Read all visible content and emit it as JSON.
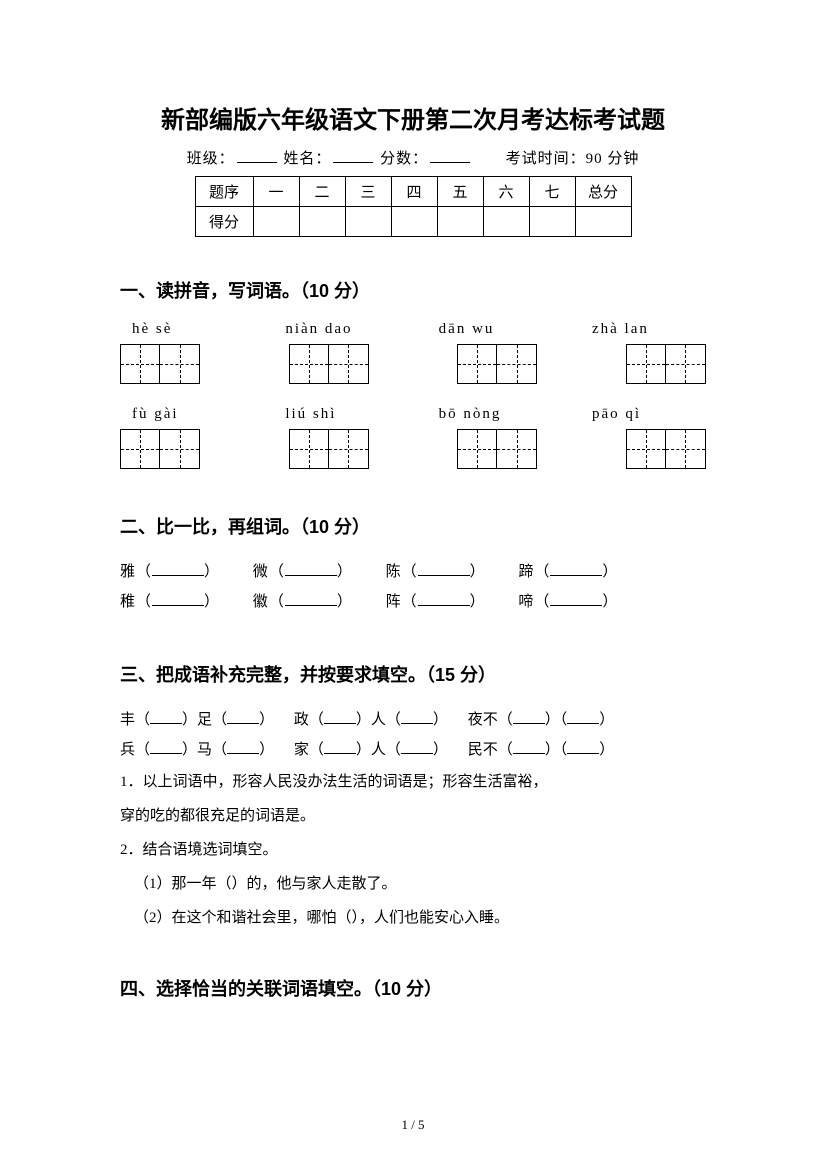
{
  "title": "新部编版六年级语文下册第二次月考达标考试题",
  "info": {
    "class_label": "班级：",
    "name_label": "姓名：",
    "score_label": "分数：",
    "time_label": "考试时间：90 分钟"
  },
  "score_table": {
    "row_header": "题序",
    "score_header": "得分",
    "cols": [
      "一",
      "二",
      "三",
      "四",
      "五",
      "六",
      "七"
    ],
    "total": "总分"
  },
  "section1": {
    "heading": "一、读拼音，写词语。（10 分）",
    "row1": [
      {
        "pinyin": "hè  sè",
        "cells": 2
      },
      {
        "pinyin": "niàn dao",
        "cells": 2
      },
      {
        "pinyin": "dān wu",
        "cells": 2
      },
      {
        "pinyin": "zhà lan",
        "cells": 2
      }
    ],
    "row2": [
      {
        "pinyin": "fù   gài",
        "cells": 2
      },
      {
        "pinyin": "liú shì",
        "cells": 2
      },
      {
        "pinyin": "bō nòng",
        "cells": 2
      },
      {
        "pinyin": "pāo qì",
        "cells": 2
      }
    ]
  },
  "section2": {
    "heading": "二、比一比，再组词。（10 分）",
    "rows": [
      [
        "雅",
        "微",
        "陈",
        "蹄"
      ],
      [
        "稚",
        "徽",
        "阵",
        "啼"
      ]
    ]
  },
  "section3": {
    "heading": "三、把成语补充完整，并按要求填空。（15 分）",
    "idioms_line1": [
      {
        "a": "丰",
        "b": "足"
      },
      {
        "a": "政",
        "b": "人"
      },
      {
        "a": "夜不",
        "b": ""
      }
    ],
    "idioms_line2": [
      {
        "a": "兵",
        "b": "马"
      },
      {
        "a": "家",
        "b": "人"
      },
      {
        "a": "民不",
        "b": ""
      }
    ],
    "q1a": "1．以上词语中，形容人民没办法生活的词语是",
    "q1b": "；形容生活富裕，",
    "q1c": "穿的吃的都很充足的词语是",
    "q1d": "。",
    "q2": "2．结合语境选词填空。",
    "q2_1a": "（1）那一年（",
    "q2_1b": "）的，他与家人走散了。",
    "q2_2a": "（2）在这个和谐社会里，哪怕（",
    "q2_2b": "），人们也能安心入睡。"
  },
  "section4": {
    "heading": "四、选择恰当的关联词语填空。（10 分）"
  },
  "footer": "1 / 5"
}
